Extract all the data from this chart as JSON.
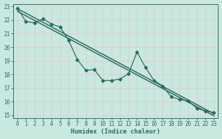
{
  "xlabel": "Humidex (Indice chaleur)",
  "xlim": [
    -0.5,
    23.5
  ],
  "ylim": [
    14.8,
    23.2
  ],
  "background_color": "#c8e8e0",
  "grid_color": "#e8c8c8",
  "line_color": "#2a6b60",
  "regression1": {
    "x": [
      0,
      23
    ],
    "y": [
      22.85,
      15.1
    ]
  },
  "regression2": {
    "x": [
      0,
      23
    ],
    "y": [
      22.65,
      14.95
    ]
  },
  "jagged_line": {
    "x": [
      0,
      1,
      2,
      3,
      4,
      5,
      6,
      7,
      8,
      9,
      10,
      11,
      12,
      13,
      14,
      15,
      16,
      17,
      18,
      19,
      20,
      21,
      22,
      23
    ],
    "y": [
      22.85,
      21.9,
      21.8,
      22.1,
      21.7,
      21.5,
      20.5,
      19.1,
      18.3,
      18.35,
      17.55,
      17.55,
      17.65,
      18.05,
      19.65,
      18.5,
      17.55,
      17.15,
      16.35,
      16.15,
      16.05,
      15.5,
      15.3,
      15.2
    ]
  },
  "xticks": [
    0,
    1,
    2,
    3,
    4,
    5,
    6,
    7,
    8,
    9,
    10,
    11,
    12,
    13,
    14,
    15,
    16,
    17,
    18,
    19,
    20,
    21,
    22,
    23
  ],
  "yticks": [
    15,
    16,
    17,
    18,
    19,
    20,
    21,
    22,
    23
  ]
}
